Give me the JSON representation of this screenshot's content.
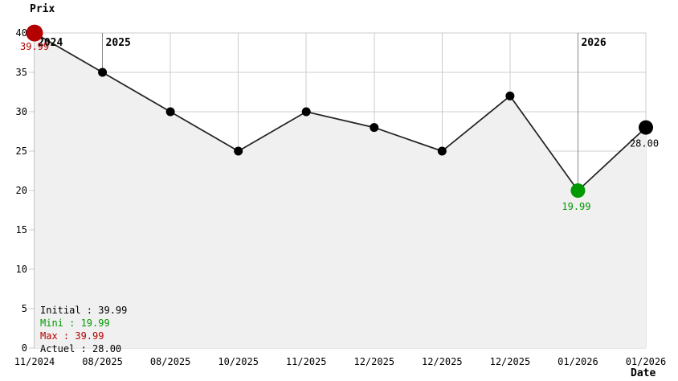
{
  "chart_data": {
    "type": "line",
    "title": "Prix",
    "xlabel": "Date",
    "ylabel": "Prix",
    "ylim": [
      0,
      40
    ],
    "y_ticks": [
      0,
      5,
      10,
      15,
      20,
      25,
      30,
      35,
      40
    ],
    "y_tick_labels": [
      "0",
      "5",
      "10",
      "15",
      "20",
      "25",
      "30",
      "35",
      "40"
    ],
    "grid": true,
    "points": [
      {
        "x_label": "11/2024",
        "value": 39.99,
        "dot": "large",
        "dot_color": "#b30000",
        "label": "39.99",
        "label_pos": "below-left",
        "label_color": "#b30000"
      },
      {
        "x_label": "08/2025",
        "value": 35,
        "dot": "small",
        "dot_color": "#000000"
      },
      {
        "x_label": "08/2025",
        "value": 30,
        "dot": "small",
        "dot_color": "#000000"
      },
      {
        "x_label": "10/2025",
        "value": 25,
        "dot": "small",
        "dot_color": "#000000"
      },
      {
        "x_label": "11/2025",
        "value": 30,
        "dot": "small",
        "dot_color": "#000000"
      },
      {
        "x_label": "12/2025",
        "value": 28,
        "dot": "small",
        "dot_color": "#000000"
      },
      {
        "x_label": "12/2025",
        "value": 25,
        "dot": "small",
        "dot_color": "#000000"
      },
      {
        "x_label": "12/2025",
        "value": 32,
        "dot": "small",
        "dot_color": "#000000"
      },
      {
        "x_label": "01/2026",
        "value": 19.99,
        "dot": "medium",
        "dot_color": "#009900",
        "label": "19.99",
        "label_pos": "below",
        "label_color": "#009900"
      },
      {
        "x_label": "01/2026",
        "value": 28,
        "dot": "medium",
        "dot_color": "#000000",
        "label": "28.00",
        "label_pos": "below",
        "label_color": "#000000"
      }
    ],
    "year_markers": [
      {
        "label": "2024",
        "at_tick": 0
      },
      {
        "label": "2025",
        "at_tick": 1
      },
      {
        "label": "2026",
        "at_tick": 8
      }
    ],
    "legend": [
      {
        "label": "Initial : 39.99",
        "color": "#000000"
      },
      {
        "label": "Mini : 19.99",
        "color": "#009900"
      },
      {
        "label": "Max : 39.99",
        "color": "#b30000"
      },
      {
        "label": "Actuel : 28.00",
        "color": "#000000"
      }
    ],
    "colors": {
      "grid": "#cccccc",
      "year_line": "#888888",
      "area_fill": "#f0f0f0",
      "line": "#222222",
      "min": "#009900",
      "max": "#b30000",
      "text": "#000000"
    }
  }
}
